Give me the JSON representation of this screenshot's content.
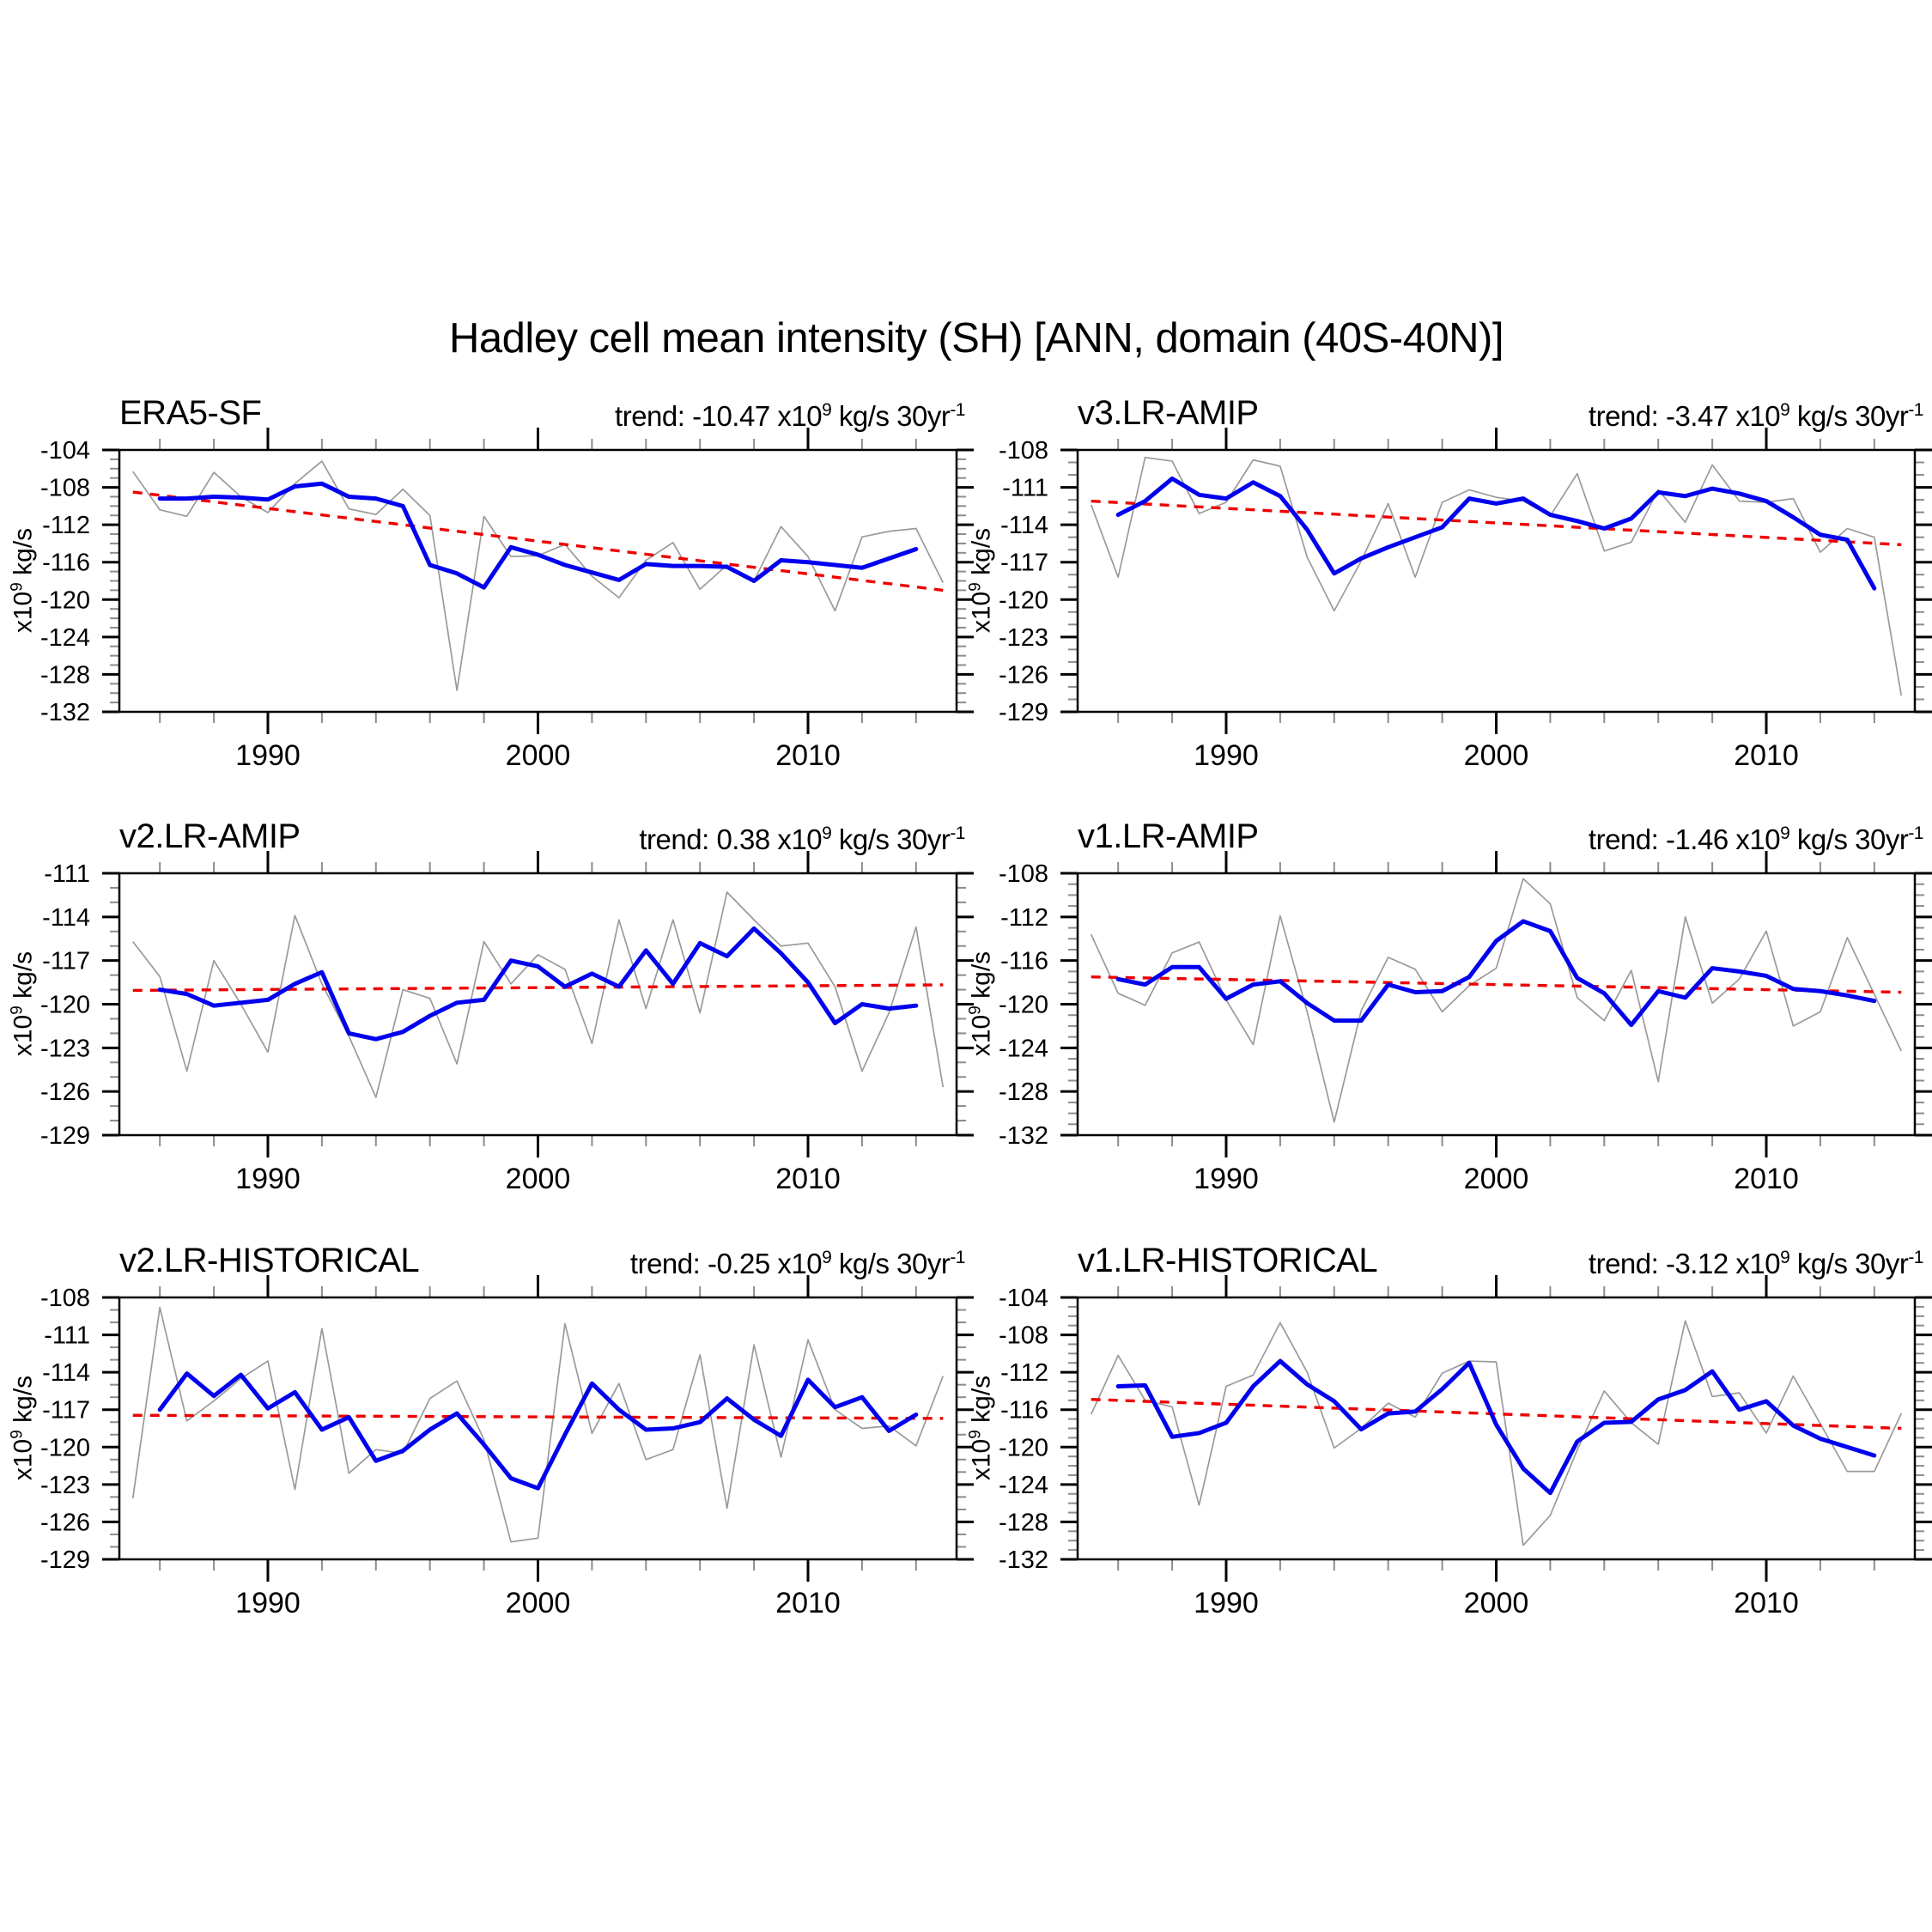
{
  "page_title": "Hadley cell mean intensity (SH) [ANN, domain (40S-40N)]",
  "colors": {
    "annual_line": "#9a9a9a",
    "smoothed_line": "#0000ee",
    "trend_line": "#ee0000",
    "axis": "#000000",
    "minor_tick": "#8c8c8c"
  },
  "axis": {
    "x_axis_min": 1984.5,
    "x_axis_max": 2015.5,
    "x_major_ticks": [
      1990,
      2000,
      2010
    ],
    "x_minor_step_years": 2,
    "y_unit_label": {
      "base": "x10",
      "sup": "9",
      "rest": " kg/s"
    }
  },
  "trend_label_format": {
    "prefix": "trend: ",
    "x10": " x10",
    "x10_sup": "9",
    "units": " kg/s 30yr",
    "units_sup": "-1"
  },
  "chart_data": [
    {
      "type": "line",
      "title": "ERA5-SF",
      "trend_value": "-10.47",
      "ylim": [
        -132,
        -104
      ],
      "y_tick_step": 4,
      "series": [
        {
          "name": "annual",
          "start_year": 1985,
          "values": [
            -106.3,
            -110.4,
            -111.1,
            -106.4,
            -109.0,
            -110.7,
            -107.6,
            -105.2,
            -110.3,
            -110.9,
            -108.2,
            -111.0,
            -129.7,
            -111.1,
            -115.4,
            -115.3,
            -114.1,
            -117.5,
            -119.8,
            -115.8,
            -113.9,
            -118.9,
            -116.3,
            -118.0,
            -112.2,
            -115.4,
            -121.2,
            -113.3,
            -112.7,
            -112.4,
            -118.2
          ]
        },
        {
          "name": "smoothed",
          "start_year": 1986,
          "values": [
            -109.2,
            -109.2,
            -109.0,
            -109.1,
            -109.3,
            -107.9,
            -107.6,
            -109.0,
            -109.2,
            -110.0,
            -116.3,
            -117.2,
            -118.7,
            -114.4,
            -115.2,
            -116.3,
            -117.1,
            -117.9,
            -116.2,
            -116.4,
            -116.4,
            -116.5,
            -118.0,
            -115.8,
            -116.0,
            -116.3,
            -116.6,
            -115.6,
            -114.6
          ]
        },
        {
          "name": "trend",
          "start_year": 1985,
          "end_year": 2015,
          "start_value": -108.5,
          "end_value": -119.0
        }
      ]
    },
    {
      "type": "line",
      "title": "v3.LR-AMIP",
      "trend_value": "-3.47",
      "ylim": [
        -129,
        -108
      ],
      "y_tick_step": 3,
      "series": [
        {
          "name": "annual",
          "start_year": 1985,
          "values": [
            -112.4,
            -118.2,
            -108.6,
            -108.9,
            -113.1,
            -112.2,
            -108.8,
            -109.3,
            -116.6,
            -120.9,
            -116.9,
            -112.3,
            -118.2,
            -112.2,
            -111.2,
            -111.8,
            -112.1,
            -113.3,
            -109.9,
            -116.1,
            -115.4,
            -111.2,
            -113.8,
            -109.2,
            -112.1,
            -112.2,
            -111.9,
            -116.2,
            -114.3,
            -115.0,
            -127.7
          ]
        },
        {
          "name": "smoothed",
          "start_year": 1986,
          "values": [
            -113.2,
            -112.1,
            -110.3,
            -111.6,
            -111.9,
            -110.6,
            -111.7,
            -114.4,
            -117.9,
            -116.7,
            -115.8,
            -115.0,
            -114.2,
            -111.9,
            -112.3,
            -111.9,
            -113.2,
            -113.7,
            -114.3,
            -113.5,
            -111.4,
            -111.7,
            -111.1,
            -111.5,
            -112.1,
            -113.4,
            -114.8,
            -115.2,
            -119.1
          ]
        },
        {
          "name": "trend",
          "start_year": 1985,
          "end_year": 2015,
          "start_value": -112.1,
          "end_value": -115.6
        }
      ]
    },
    {
      "type": "line",
      "title": "v2.LR-AMIP",
      "trend_value": "0.38",
      "ylim": [
        -129,
        -111
      ],
      "y_tick_step": 3,
      "series": [
        {
          "name": "annual",
          "start_year": 1985,
          "values": [
            -115.7,
            -118.1,
            -124.6,
            -117.0,
            -120.0,
            -123.3,
            -113.9,
            -118.6,
            -122.2,
            -126.4,
            -119.0,
            -119.6,
            -124.1,
            -115.7,
            -118.6,
            -116.6,
            -117.6,
            -122.7,
            -114.2,
            -120.3,
            -114.2,
            -120.6,
            -112.3,
            -114.2,
            -116.0,
            -115.8,
            -118.8,
            -124.6,
            -120.6,
            -114.7,
            -125.7
          ]
        },
        {
          "name": "smoothed",
          "start_year": 1986,
          "values": [
            -119.0,
            -119.3,
            -120.1,
            -119.9,
            -119.7,
            -118.6,
            -117.8,
            -122.0,
            -122.4,
            -121.9,
            -120.8,
            -119.9,
            -119.7,
            -117.0,
            -117.4,
            -118.8,
            -117.9,
            -118.8,
            -116.3,
            -118.6,
            -115.8,
            -116.7,
            -114.8,
            -116.5,
            -118.5,
            -121.3,
            -120.0,
            -120.3,
            -120.1
          ]
        },
        {
          "name": "trend",
          "start_year": 1985,
          "end_year": 2015,
          "start_value": -119.05,
          "end_value": -118.67
        }
      ]
    },
    {
      "type": "line",
      "title": "v1.LR-AMIP",
      "trend_value": "-1.46",
      "ylim": [
        -132,
        -108
      ],
      "y_tick_step": 4,
      "series": [
        {
          "name": "annual",
          "start_year": 1985,
          "values": [
            -113.6,
            -119.0,
            -120.1,
            -115.3,
            -114.3,
            -119.6,
            -123.7,
            -111.9,
            -120.7,
            -130.8,
            -120.6,
            -115.7,
            -116.8,
            -120.7,
            -118.3,
            -116.7,
            -108.5,
            -110.8,
            -119.4,
            -121.5,
            -116.9,
            -127.1,
            -112.0,
            -119.9,
            -117.7,
            -113.3,
            -122.0,
            -120.7,
            -113.9,
            -119.1,
            -124.3
          ]
        },
        {
          "name": "smoothed",
          "start_year": 1986,
          "values": [
            -117.7,
            -118.2,
            -116.6,
            -116.6,
            -119.5,
            -118.2,
            -117.9,
            -119.9,
            -121.5,
            -121.5,
            -118.2,
            -118.9,
            -118.8,
            -117.5,
            -114.2,
            -112.4,
            -113.3,
            -117.6,
            -119.0,
            -121.9,
            -118.8,
            -119.4,
            -116.7,
            -117.0,
            -117.4,
            -118.6,
            -118.8,
            -119.2,
            -119.7
          ]
        },
        {
          "name": "trend",
          "start_year": 1985,
          "end_year": 2015,
          "start_value": -117.5,
          "end_value": -118.9
        }
      ]
    },
    {
      "type": "line",
      "title": "v2.LR-HISTORICAL",
      "trend_value": "-0.25",
      "ylim": [
        -129,
        -108
      ],
      "y_tick_step": 3,
      "series": [
        {
          "name": "annual",
          "start_year": 1985,
          "values": [
            -124.1,
            -108.8,
            -117.9,
            -116.3,
            -114.5,
            -113.1,
            -123.4,
            -110.5,
            -122.1,
            -120.2,
            -120.5,
            -116.1,
            -114.7,
            -119.4,
            -127.6,
            -127.3,
            -110.1,
            -118.9,
            -114.9,
            -121.0,
            -120.2,
            -112.6,
            -124.9,
            -111.8,
            -120.8,
            -111.4,
            -117.0,
            -118.5,
            -118.3,
            -119.9,
            -114.3
          ]
        },
        {
          "name": "smoothed",
          "start_year": 1986,
          "values": [
            -117.0,
            -114.1,
            -115.9,
            -114.2,
            -116.9,
            -115.6,
            -118.6,
            -117.6,
            -121.1,
            -120.3,
            -118.6,
            -117.3,
            -119.8,
            -122.5,
            -123.3,
            -119.0,
            -114.9,
            -117.0,
            -118.6,
            -118.5,
            -118.0,
            -116.1,
            -117.8,
            -119.1,
            -114.6,
            -116.8,
            -116.0,
            -118.7,
            -117.4
          ]
        },
        {
          "name": "trend",
          "start_year": 1985,
          "end_year": 2015,
          "start_value": -117.45,
          "end_value": -117.7
        }
      ]
    },
    {
      "type": "line",
      "title": "v1.LR-HISTORICAL",
      "trend_value": "-3.12",
      "ylim": [
        -132,
        -104
      ],
      "y_tick_step": 4,
      "series": [
        {
          "name": "annual",
          "start_year": 1985,
          "values": [
            -116.5,
            -110.2,
            -115.0,
            -115.7,
            -126.2,
            -113.5,
            -112.3,
            -106.7,
            -112.0,
            -120.1,
            -118.0,
            -115.3,
            -116.8,
            -112.1,
            -110.8,
            -110.9,
            -130.5,
            -127.3,
            -120.3,
            -114.0,
            -117.4,
            -119.7,
            -106.5,
            -114.6,
            -114.2,
            -118.5,
            -112.4,
            -117.5,
            -122.6,
            -122.6,
            -116.4
          ]
        },
        {
          "name": "smoothed",
          "start_year": 1986,
          "values": [
            -113.5,
            -113.4,
            -118.9,
            -118.5,
            -117.4,
            -113.5,
            -110.8,
            -113.3,
            -115.1,
            -118.1,
            -116.4,
            -116.2,
            -113.8,
            -111.0,
            -117.6,
            -122.3,
            -124.9,
            -119.4,
            -117.4,
            -117.3,
            -114.9,
            -113.9,
            -111.9,
            -116.0,
            -115.1,
            -117.7,
            -119.1,
            -120.0,
            -120.9
          ]
        },
        {
          "name": "trend",
          "start_year": 1985,
          "end_year": 2015,
          "start_value": -114.9,
          "end_value": -118.0
        }
      ]
    }
  ]
}
